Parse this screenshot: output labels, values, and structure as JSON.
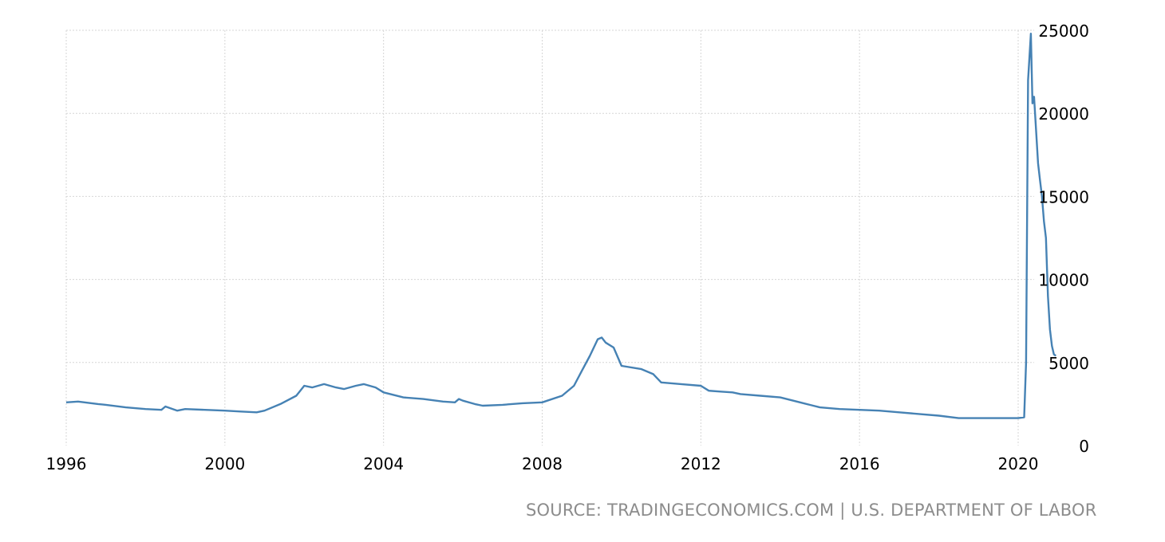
{
  "chart_data": {
    "type": "line",
    "title": "",
    "xlabel": "",
    "ylabel": "",
    "xlim": [
      1996,
      2020.95
    ],
    "ylim": [
      0,
      25000
    ],
    "x_ticks": [
      "1996",
      "2000",
      "2004",
      "2008",
      "2012",
      "2016",
      "2020"
    ],
    "y_ticks": [
      "0",
      "5000",
      "10000",
      "15000",
      "20000",
      "25000"
    ],
    "y_axis_position": "right",
    "grid": true,
    "legend": "none",
    "color": "#4682b4",
    "series": [
      {
        "x": [
          1996.0,
          1996.3,
          1996.8,
          1997.0,
          1997.5,
          1998.0,
          1998.4,
          1998.5,
          1998.8,
          1999.0,
          1999.5,
          2000.0,
          2000.4,
          2000.8,
          2001.0,
          2001.4,
          2001.8,
          2002.0,
          2002.2,
          2002.5,
          2002.8,
          2003.0,
          2003.3,
          2003.5,
          2003.8,
          2004.0,
          2004.5,
          2005.0,
          2005.5,
          2005.8,
          2005.9,
          2006.0,
          2006.3,
          2006.5,
          2007.0,
          2007.5,
          2008.0,
          2008.5,
          2008.8,
          2009.0,
          2009.2,
          2009.4,
          2009.5,
          2009.6,
          2009.8,
          2010.0,
          2010.5,
          2010.8,
          2011.0,
          2011.5,
          2012.0,
          2012.2,
          2012.5,
          2012.8,
          2013.0,
          2013.5,
          2014.0,
          2014.5,
          2015.0,
          2015.5,
          2016.0,
          2016.5,
          2017.0,
          2017.5,
          2018.0,
          2018.5,
          2019.0,
          2019.5,
          2020.0,
          2020.15,
          2020.2,
          2020.25,
          2020.32,
          2020.36,
          2020.4,
          2020.45,
          2020.5,
          2020.55,
          2020.6,
          2020.65,
          2020.7,
          2020.75,
          2020.8,
          2020.85,
          2020.9,
          2020.95
        ],
        "values": [
          2600,
          2650,
          2500,
          2450,
          2300,
          2200,
          2150,
          2350,
          2100,
          2200,
          2150,
          2100,
          2050,
          2000,
          2100,
          2500,
          3000,
          3600,
          3500,
          3700,
          3500,
          3400,
          3600,
          3700,
          3500,
          3200,
          2900,
          2800,
          2650,
          2600,
          2800,
          2700,
          2500,
          2400,
          2450,
          2550,
          2600,
          3000,
          3600,
          4500,
          5400,
          6400,
          6500,
          6200,
          5900,
          4800,
          4600,
          4300,
          3800,
          3700,
          3600,
          3300,
          3250,
          3200,
          3100,
          3000,
          2900,
          2600,
          2300,
          2200,
          2150,
          2100,
          2000,
          1900,
          1800,
          1650,
          1650,
          1650,
          1650,
          1700,
          5000,
          22000,
          24800,
          20600,
          21000,
          19000,
          17000,
          16000,
          15000,
          13500,
          12500,
          9000,
          7000,
          6000,
          5500,
          5400
        ]
      }
    ]
  },
  "footer": {
    "source": "SOURCE: TRADINGECONOMICS.COM | U.S. DEPARTMENT OF LABOR"
  }
}
